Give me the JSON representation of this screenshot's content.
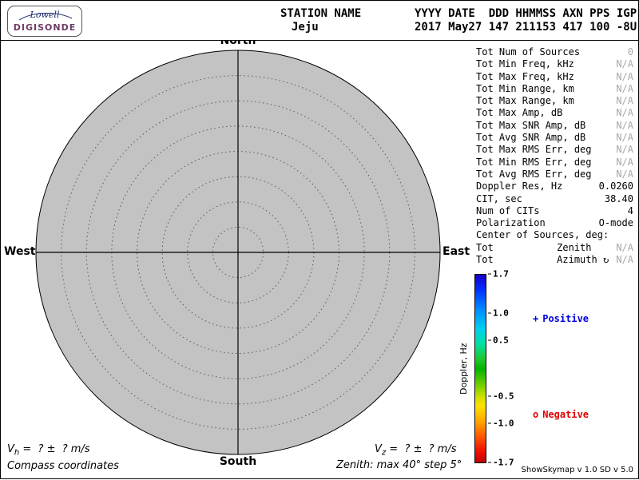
{
  "header": {
    "logo_line1": "Lowell",
    "logo_line2": "DIGISONDE",
    "station_label": "STATION NAME",
    "station_value": "Jeju",
    "columns_label": "YYYY DATE  DDD HHMMSS AXN PPS IGP",
    "columns_value": "2017 May27 147 211153 417 100 -8U"
  },
  "compass": {
    "north_label": "North",
    "south_label": "South",
    "west_label": "West",
    "east_label": "East",
    "zenith_max_deg": 40,
    "zenith_step_deg": 5,
    "ring_count": 8,
    "fill_color": "#c3c3c3"
  },
  "stats": {
    "rows": [
      {
        "label": "Tot Num of Sources",
        "value": "0",
        "muted": true
      },
      {
        "label": "Tot Min Freq, kHz",
        "value": "N/A",
        "muted": true
      },
      {
        "label": "Tot Max Freq, kHz",
        "value": "N/A",
        "muted": true
      },
      {
        "label": "Tot Min Range, km",
        "value": "N/A",
        "muted": true
      },
      {
        "label": "Tot Max Range, km",
        "value": "N/A",
        "muted": true
      },
      {
        "label": "Tot Max Amp, dB",
        "value": "N/A",
        "muted": true
      },
      {
        "label": "Tot Max SNR Amp, dB",
        "value": "N/A",
        "muted": true
      },
      {
        "label": "Tot Avg SNR Amp, dB",
        "value": "N/A",
        "muted": true
      },
      {
        "label": "Tot Max RMS Err, deg",
        "value": "N/A",
        "muted": true
      },
      {
        "label": "Tot Min RMS Err, deg",
        "value": "N/A",
        "muted": true
      },
      {
        "label": "Tot Avg RMS Err, deg",
        "value": "N/A",
        "muted": true
      },
      {
        "label": "Doppler Res, Hz",
        "value": "0.0260",
        "muted": false
      },
      {
        "label": "CIT, sec",
        "value": "38.40",
        "muted": false
      },
      {
        "label": "Num of CITs",
        "value": "4",
        "muted": false
      },
      {
        "label": "Polarization",
        "value": "O-mode",
        "muted": false
      },
      {
        "label": "Center of Sources, deg:",
        "value": "",
        "muted": false
      },
      {
        "label": "Tot           Zenith",
        "value": "N/A",
        "muted": true
      },
      {
        "label": "Tot           Azimuth ↻",
        "value": "N/A",
        "muted": true
      }
    ]
  },
  "colorbar": {
    "title": "Doppler, Hz",
    "range_min": -1.7,
    "range_max": 1.7,
    "ticks": [
      {
        "value": 1.7,
        "label": "1.7"
      },
      {
        "value": 1.0,
        "label": "1.0"
      },
      {
        "value": 0.5,
        "label": "0.5"
      },
      {
        "value": -0.5,
        "label": "-0.5"
      },
      {
        "value": -1.0,
        "label": "-1.0"
      },
      {
        "value": -1.7,
        "label": "-1.7"
      }
    ],
    "positive_marker": "+",
    "positive_label": "Positive",
    "positive_color": "#0000e0",
    "negative_marker": "o",
    "negative_label": "Negative",
    "negative_color": "#e00000"
  },
  "footer": {
    "vh_base": "V",
    "vh_sub": "h",
    "vh_rest": " =  ? ±  ? m/s",
    "vz_base": "V",
    "vz_sub": "z",
    "vz_rest": " =  ? ±  ? m/s",
    "coords_note": "Compass coordinates",
    "zenith_note": "Zenith: max 40°  step 5°",
    "version": "ShowSkymap v 1.0  SD v 5.0"
  }
}
